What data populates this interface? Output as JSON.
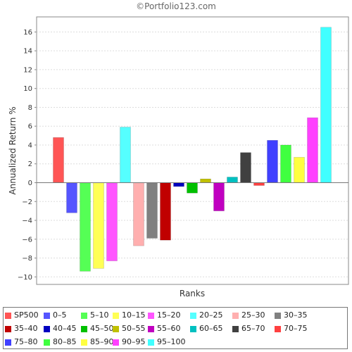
{
  "watermark": "©Portfolio123.com",
  "chart_data": {
    "type": "bar",
    "title": "",
    "xlabel": "Ranks",
    "ylabel": "Annualized Return %",
    "ylim": [
      -10.8,
      17.6
    ],
    "yticks": [
      -10,
      -8,
      -6,
      -4,
      -2,
      0,
      2,
      4,
      6,
      8,
      10,
      12,
      14,
      16
    ],
    "grid": true,
    "legend_position": "bottom",
    "series": [
      {
        "name": "SP500",
        "value": 4.8,
        "color": "#ff5555"
      },
      {
        "name": "0–5",
        "value": -3.2,
        "color": "#5555ff"
      },
      {
        "name": "5–10",
        "value": -9.4,
        "color": "#55ff55"
      },
      {
        "name": "10–15",
        "value": -9.1,
        "color": "#ffff55"
      },
      {
        "name": "15–20",
        "value": -8.3,
        "color": "#ff55ff"
      },
      {
        "name": "20–25",
        "value": 5.9,
        "color": "#55ffff"
      },
      {
        "name": "25–30",
        "value": -6.7,
        "color": "#ffafaf"
      },
      {
        "name": "30–35",
        "value": -5.9,
        "color": "#808080"
      },
      {
        "name": "35–40",
        "value": -6.1,
        "color": "#c00000"
      },
      {
        "name": "40–45",
        "value": -0.4,
        "color": "#0000c0"
      },
      {
        "name": "45–50",
        "value": -1.1,
        "color": "#00c000"
      },
      {
        "name": "50–55",
        "value": 0.4,
        "color": "#c0c000"
      },
      {
        "name": "55–60",
        "value": -3.0,
        "color": "#c000c0"
      },
      {
        "name": "60–65",
        "value": 0.6,
        "color": "#00c0c0"
      },
      {
        "name": "65–70",
        "value": 3.2,
        "color": "#404040"
      },
      {
        "name": "70–75",
        "value": -0.3,
        "color": "#ff4040"
      },
      {
        "name": "75–80",
        "value": 4.5,
        "color": "#4040ff"
      },
      {
        "name": "80–85",
        "value": 4.0,
        "color": "#40ff40"
      },
      {
        "name": "85–90",
        "value": 2.7,
        "color": "#ffff40"
      },
      {
        "name": "90–95",
        "value": 6.9,
        "color": "#ff40ff"
      },
      {
        "name": "95–100",
        "value": 16.5,
        "color": "#40ffff"
      }
    ]
  }
}
